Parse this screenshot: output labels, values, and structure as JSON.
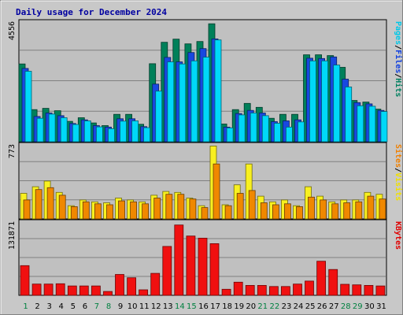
{
  "chart_data": {
    "type": "bar",
    "title": "Daily usage for December 2024",
    "days": [
      "1",
      "2",
      "3",
      "4",
      "5",
      "6",
      "7",
      "8",
      "9",
      "10",
      "11",
      "12",
      "13",
      "14",
      "15",
      "16",
      "17",
      "18",
      "19",
      "20",
      "21",
      "22",
      "23",
      "24",
      "25",
      "26",
      "27",
      "28",
      "29",
      "30",
      "31"
    ],
    "weekend_days": [
      "1",
      "7",
      "8",
      "14",
      "15",
      "21",
      "22",
      "28",
      "29"
    ],
    "panels": [
      {
        "name": "hits-files-pages",
        "max_label": "4556",
        "ymax": 4556,
        "legend": [
          "Pages",
          "/",
          "Files",
          "/",
          "Hits"
        ],
        "legend_colors": [
          "#00c8e8",
          "#000000",
          "#1040e0",
          "#000000",
          "#008060"
        ],
        "series": [
          {
            "name": "Hits",
            "color": "#00805a",
            "values": [
              2980,
              1230,
              1280,
              1190,
              780,
              920,
              720,
              620,
              1050,
              1050,
              670,
              2990,
              3810,
              3930,
              3750,
              3840,
              4520,
              680,
              1230,
              1470,
              1320,
              900,
              1050,
              1050,
              3330,
              3330,
              3300,
              2850,
              1580,
              1520,
              1250
            ]
          },
          {
            "name": "Files",
            "color": "#1848e0",
            "values": [
              2810,
              970,
              1100,
              1000,
              700,
              840,
              620,
              560,
              880,
              880,
              580,
              2210,
              3230,
              3060,
              3420,
              3570,
              3940,
              560,
              1080,
              1200,
              1100,
              770,
              800,
              840,
              3200,
              3190,
              3250,
              2400,
              1500,
              1450,
              1200
            ]
          },
          {
            "name": "Pages",
            "color": "#00d8f8",
            "values": [
              2700,
              900,
              1060,
              920,
              660,
              800,
              570,
              500,
              790,
              800,
              540,
              1940,
              3060,
              2980,
              3100,
              3240,
              3900,
              530,
              1030,
              1100,
              1000,
              710,
              560,
              760,
              3100,
              3100,
              2940,
              2100,
              1380,
              1360,
              1160
            ]
          }
        ]
      },
      {
        "name": "visits-sites",
        "max_label": "773",
        "ymax": 773,
        "legend": [
          "Sites",
          "/",
          "Visits"
        ],
        "legend_colors": [
          "#f08000",
          "#000000",
          "#f0e000"
        ],
        "series": [
          {
            "name": "Visits",
            "color": "#f8f020",
            "values": [
              270,
              340,
              400,
              280,
              140,
              200,
              180,
              170,
              220,
              200,
              180,
              250,
              290,
              280,
              220,
              140,
              770,
              150,
              360,
              580,
              240,
              180,
              200,
              140,
              340,
              240,
              180,
              200,
              200,
              280,
              260
            ]
          },
          {
            "name": "Sites",
            "color": "#f08800",
            "values": [
              200,
              310,
              330,
              250,
              130,
              180,
              160,
              150,
              190,
              180,
              160,
              220,
              260,
              260,
              210,
              120,
              580,
              140,
              270,
              300,
              170,
              150,
              160,
              130,
              230,
              200,
              160,
              170,
              180,
              240,
              210
            ]
          }
        ]
      },
      {
        "name": "kbytes",
        "max_label": "131871",
        "ymax": 131871,
        "legend": [
          "KBytes"
        ],
        "legend_colors": [
          "#e00000"
        ],
        "series": [
          {
            "name": "KBytes",
            "color": "#f01010",
            "values": [
              54000,
              20500,
              20500,
              21000,
              17000,
              17000,
              17000,
              7000,
              38000,
              32000,
              10000,
              40000,
              89000,
              128000,
              108000,
              104000,
              94000,
              11000,
              24000,
              18000,
              18000,
              16000,
              16000,
              20500,
              26000,
              62000,
              47000,
              20000,
              19000,
              18000,
              17000
            ]
          }
        ]
      }
    ]
  }
}
